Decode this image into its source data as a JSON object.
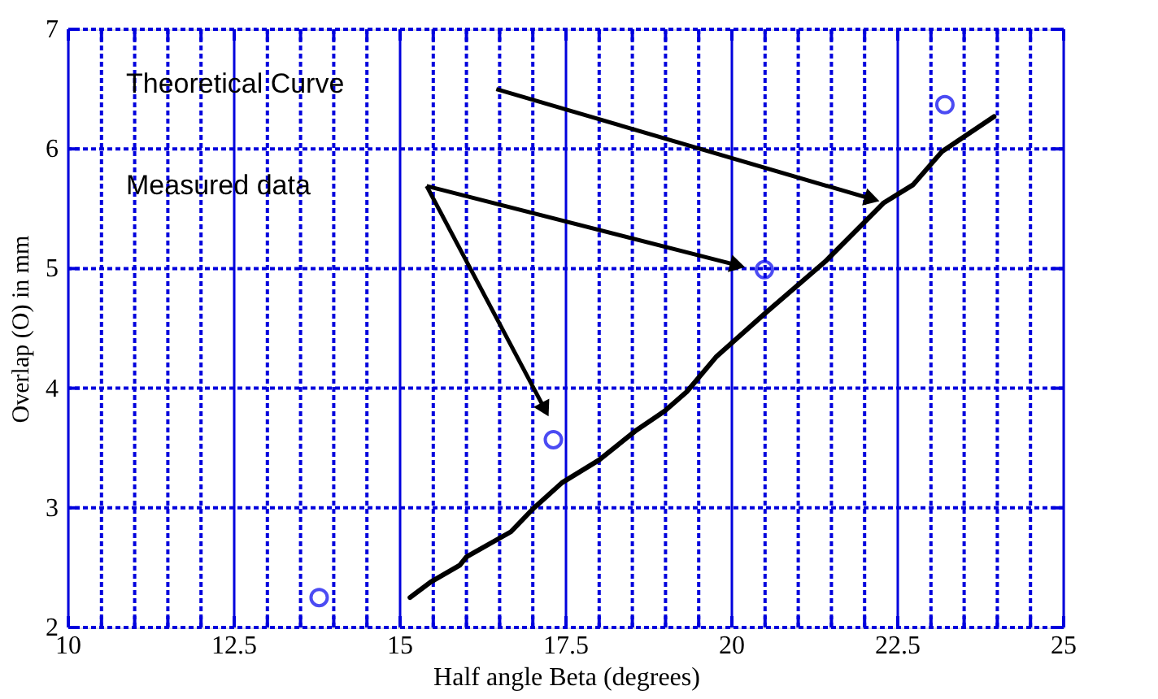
{
  "chart_data": {
    "type": "scatter",
    "xlabel": "Half angle Beta (degrees)",
    "ylabel": "Overlap (O) in mm",
    "x": [
      13.78,
      17.31,
      20.49,
      23.21
    ],
    "series": [
      {
        "color": "#0000ee",
        "marker": "circle",
        "values": [
          2.25,
          3.57,
          4.99,
          6.37
        ]
      },
      {
        "type": "line",
        "color": "#000000",
        "line_style": "solid",
        "x": [
          15.15,
          15.46,
          15.9,
          16.0,
          16.67,
          17.0,
          17.44,
          18.0,
          18.54,
          18.99,
          19.32,
          19.76,
          20.49,
          21.41,
          22.29,
          22.73,
          23.17,
          23.95
        ],
        "values": [
          2.25,
          2.38,
          2.52,
          2.59,
          2.8,
          2.99,
          3.21,
          3.4,
          3.64,
          3.81,
          3.97,
          4.26,
          4.62,
          5.06,
          5.55,
          5.7,
          5.98,
          6.27
        ]
      }
    ],
    "xlim": [
      10,
      25
    ],
    "ylim": [
      2,
      7
    ],
    "xticks": [
      10,
      {
        "value": 10.5,
        "label": null
      },
      {
        "value": 11,
        "label": null
      },
      {
        "value": 11.5,
        "label": null
      },
      {
        "value": 12,
        "label": null
      },
      12.5,
      {
        "value": 13,
        "label": null
      },
      {
        "value": 13.5,
        "label": null
      },
      {
        "value": 14,
        "label": null
      },
      {
        "value": 14.5,
        "label": null
      },
      15,
      {
        "value": 15.5,
        "label": null
      },
      {
        "value": 16,
        "label": null
      },
      {
        "value": 16.5,
        "label": null
      },
      {
        "value": 17,
        "label": null
      },
      17.5,
      {
        "value": 18,
        "label": null
      },
      {
        "value": 18.5,
        "label": null
      },
      {
        "value": 19,
        "label": null
      },
      {
        "value": 19.5,
        "label": null
      },
      20,
      {
        "value": 20.5,
        "label": null
      },
      {
        "value": 21,
        "label": null
      },
      {
        "value": 21.5,
        "label": null
      },
      {
        "value": 22,
        "label": null
      },
      22.5,
      {
        "value": 23,
        "label": null
      },
      {
        "value": 23.5,
        "label": null
      },
      {
        "value": 24,
        "label": null
      },
      {
        "value": 24.5,
        "label": null
      },
      25
    ],
    "yticks": [
      2,
      3,
      4,
      5,
      6,
      7
    ],
    "grid": true,
    "annotations": [
      "Theoretical  Curve",
      "Measured  data"
    ]
  }
}
